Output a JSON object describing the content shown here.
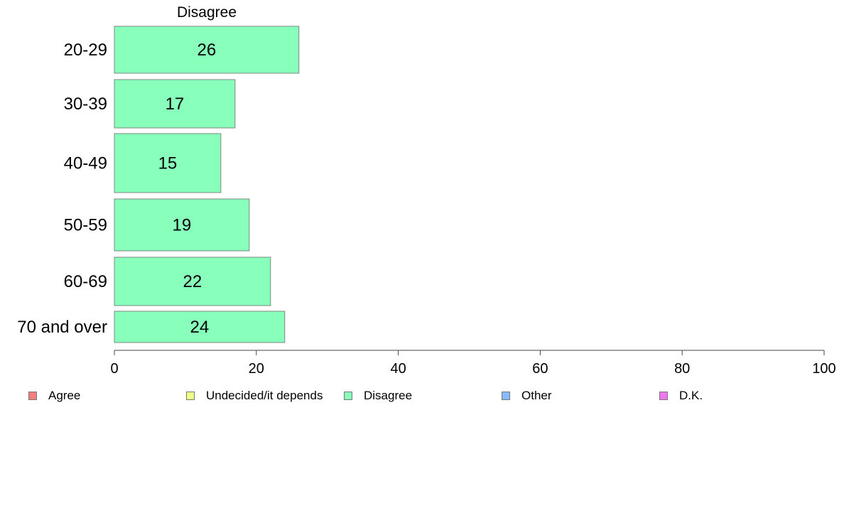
{
  "chart_data": {
    "type": "bar",
    "orientation": "horizontal",
    "title": "Disagree",
    "xlabel": "",
    "ylabel": "",
    "categories": [
      "20-29",
      "30-39",
      "40-49",
      "50-59",
      "60-69",
      "70 and over"
    ],
    "series": [
      {
        "name": "Disagree",
        "values": [
          26,
          17,
          15,
          19,
          22,
          24
        ],
        "color": "#88ffbb"
      }
    ],
    "data_labels": [
      "26",
      "17",
      "15",
      "19",
      "22",
      "24"
    ],
    "xlim": [
      0,
      100
    ],
    "x_ticks": [
      0,
      20,
      40,
      60,
      80,
      100
    ],
    "grid": false,
    "legend_position": "bottom",
    "legend": [
      {
        "label": "Agree",
        "color": "#f08080"
      },
      {
        "label": "Undecided/it depends",
        "color": "#eeff88"
      },
      {
        "label": "Disagree",
        "color": "#88ffbb"
      },
      {
        "label": "Other",
        "color": "#88bbff"
      },
      {
        "label": "D.K.",
        "color": "#ee77ee"
      }
    ]
  }
}
